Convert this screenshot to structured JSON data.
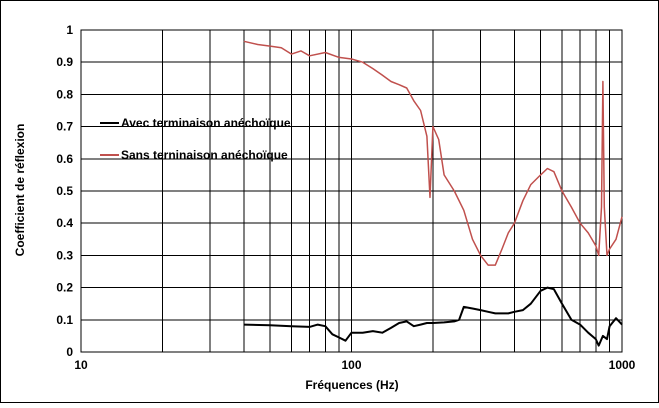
{
  "chart_data": {
    "type": "line",
    "title": "",
    "xlabel": "Fréquences (Hz)",
    "ylabel": "Coefficient de réflexion",
    "x_scale": "log",
    "xlim": [
      10,
      1000
    ],
    "ylim": [
      0,
      1
    ],
    "x_ticks": [
      "10",
      "100",
      "1000"
    ],
    "y_ticks": [
      "0",
      "0.1",
      "0.2",
      "0.3",
      "0.4",
      "0.5",
      "0.6",
      "0.7",
      "0.8",
      "0.9",
      "1"
    ],
    "grid": true,
    "legend_position": "upper-left (inside plot)",
    "series": [
      {
        "name": "Avec terminaison anéchoïque",
        "color": "#000000",
        "x": [
          40,
          50,
          60,
          70,
          75,
          80,
          85,
          90,
          95,
          100,
          110,
          120,
          130,
          140,
          150,
          160,
          170,
          180,
          190,
          200,
          220,
          240,
          250,
          260,
          280,
          300,
          320,
          340,
          360,
          380,
          400,
          430,
          460,
          500,
          530,
          560,
          600,
          650,
          700,
          750,
          800,
          820,
          850,
          880,
          900,
          950,
          1000
        ],
        "y": [
          0.085,
          0.083,
          0.08,
          0.078,
          0.085,
          0.08,
          0.055,
          0.045,
          0.035,
          0.06,
          0.06,
          0.065,
          0.06,
          0.075,
          0.09,
          0.095,
          0.08,
          0.085,
          0.09,
          0.09,
          0.092,
          0.095,
          0.1,
          0.14,
          0.135,
          0.13,
          0.125,
          0.12,
          0.12,
          0.12,
          0.125,
          0.13,
          0.15,
          0.19,
          0.2,
          0.195,
          0.15,
          0.1,
          0.085,
          0.06,
          0.04,
          0.02,
          0.05,
          0.04,
          0.08,
          0.105,
          0.085
        ]
      },
      {
        "name": "Sans terninaison anéchoïque",
        "color": "#c0504d",
        "x": [
          40,
          45,
          50,
          55,
          60,
          65,
          70,
          80,
          90,
          100,
          110,
          120,
          130,
          140,
          150,
          160,
          170,
          180,
          190,
          195,
          200,
          210,
          220,
          240,
          260,
          280,
          300,
          320,
          340,
          360,
          380,
          400,
          430,
          460,
          500,
          530,
          560,
          600,
          650,
          700,
          750,
          800,
          820,
          840,
          850,
          860,
          880,
          900,
          950,
          1000
        ],
        "y": [
          0.965,
          0.955,
          0.95,
          0.945,
          0.925,
          0.935,
          0.92,
          0.93,
          0.915,
          0.91,
          0.9,
          0.88,
          0.86,
          0.84,
          0.83,
          0.82,
          0.78,
          0.75,
          0.67,
          0.48,
          0.7,
          0.66,
          0.55,
          0.5,
          0.44,
          0.35,
          0.3,
          0.27,
          0.27,
          0.32,
          0.37,
          0.4,
          0.47,
          0.52,
          0.55,
          0.57,
          0.56,
          0.5,
          0.45,
          0.4,
          0.37,
          0.33,
          0.3,
          0.45,
          0.84,
          0.45,
          0.3,
          0.32,
          0.35,
          0.42
        ]
      }
    ]
  }
}
